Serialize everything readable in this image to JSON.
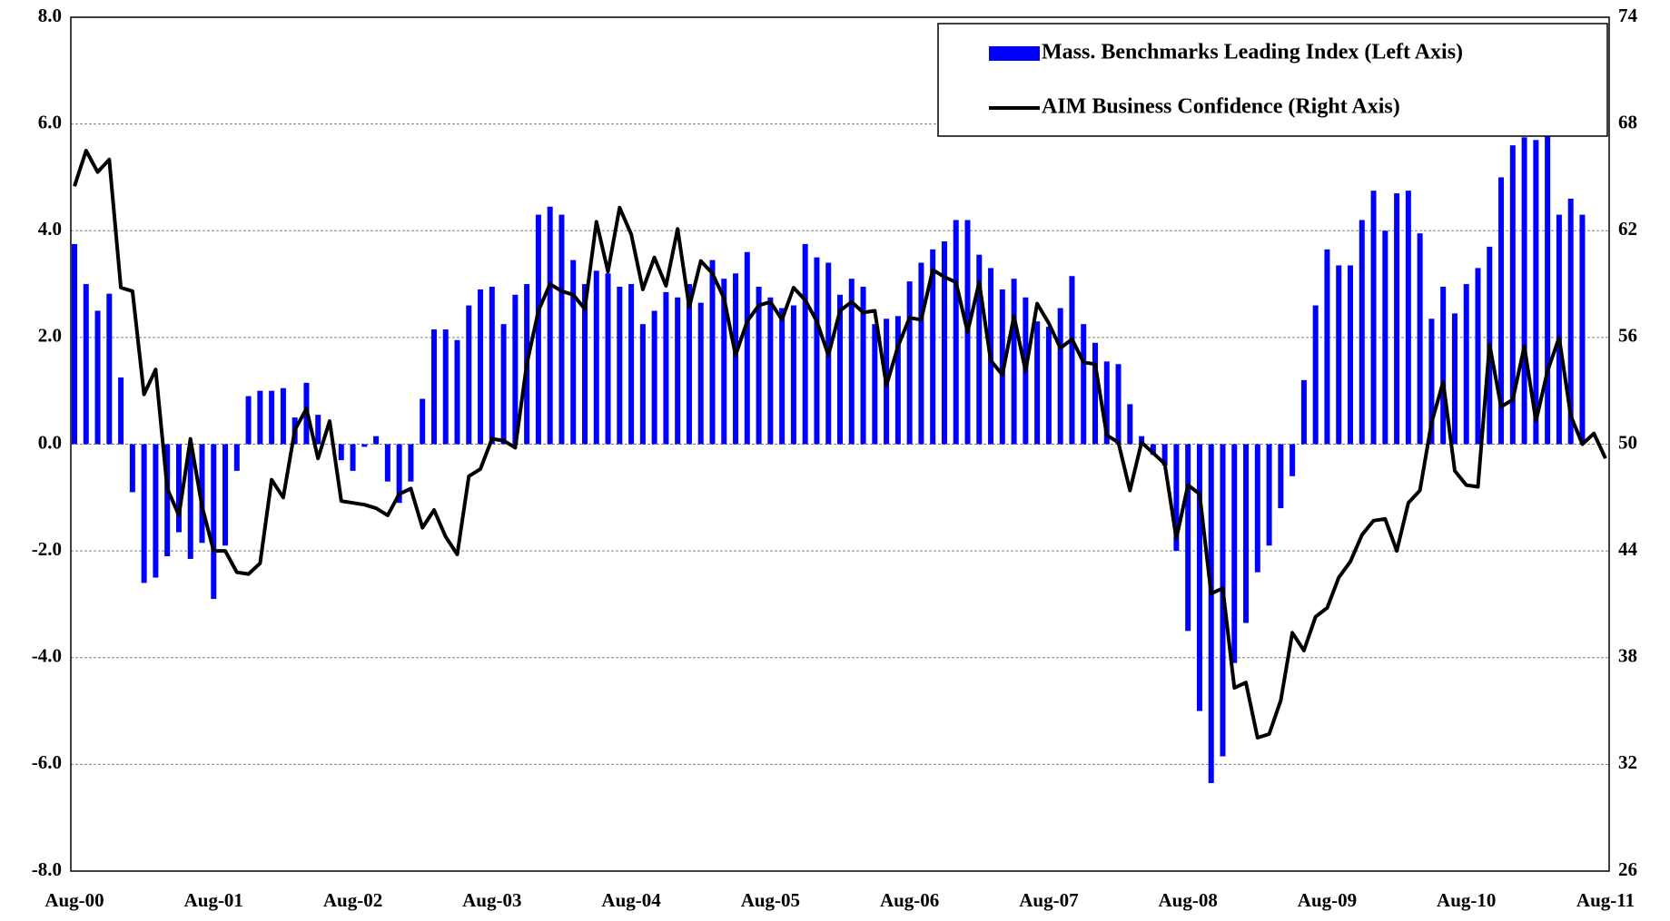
{
  "chart_data": {
    "type": "bar-line",
    "categories": [
      "Aug-00",
      null,
      null,
      null,
      null,
      null,
      null,
      null,
      null,
      null,
      null,
      null,
      "Aug-01",
      null,
      null,
      null,
      null,
      null,
      null,
      null,
      null,
      null,
      null,
      null,
      "Aug-02",
      null,
      null,
      null,
      null,
      null,
      null,
      null,
      null,
      null,
      null,
      null,
      "Aug-03",
      null,
      null,
      null,
      null,
      null,
      null,
      null,
      null,
      null,
      null,
      null,
      "Aug-04",
      null,
      null,
      null,
      null,
      null,
      null,
      null,
      null,
      null,
      null,
      null,
      "Aug-05",
      null,
      null,
      null,
      null,
      null,
      null,
      null,
      null,
      null,
      null,
      null,
      "Aug-06",
      null,
      null,
      null,
      null,
      null,
      null,
      null,
      null,
      null,
      null,
      null,
      "Aug-07",
      null,
      null,
      null,
      null,
      null,
      null,
      null,
      null,
      null,
      null,
      null,
      "Aug-08",
      null,
      null,
      null,
      null,
      null,
      null,
      null,
      null,
      null,
      null,
      null,
      "Aug-09",
      null,
      null,
      null,
      null,
      null,
      null,
      null,
      null,
      null,
      null,
      null,
      "Aug-10",
      null,
      null,
      null,
      null,
      null,
      null,
      null,
      null,
      null,
      null,
      null,
      "Aug-11"
    ],
    "series": [
      {
        "name": "Mass. Benchmarks Leading Index (Left Axis)",
        "type": "bar",
        "color": "#0000ff",
        "values": [
          3.75,
          3.0,
          2.5,
          2.82,
          1.25,
          -0.9,
          -2.6,
          -2.5,
          -2.1,
          -1.65,
          -2.15,
          -1.85,
          -2.9,
          -1.9,
          -0.5,
          0.9,
          1.0,
          1.0,
          1.05,
          0.5,
          1.15,
          0.55,
          0.0,
          -0.3,
          -0.5,
          -0.05,
          0.15,
          -0.7,
          -1.1,
          -0.7,
          0.85,
          2.15,
          2.15,
          1.95,
          2.6,
          2.9,
          2.95,
          2.25,
          2.8,
          3.0,
          4.3,
          4.45,
          4.3,
          3.45,
          3.0,
          3.25,
          3.2,
          2.95,
          3.0,
          2.25,
          2.5,
          2.85,
          2.75,
          3.0,
          2.65,
          3.45,
          3.1,
          3.2,
          3.6,
          2.95,
          2.75,
          2.55,
          2.6,
          3.75,
          3.5,
          3.4,
          2.8,
          3.1,
          2.95,
          2.25,
          2.35,
          2.4,
          3.05,
          3.4,
          3.65,
          3.8,
          4.2,
          4.2,
          3.55,
          3.3,
          2.9,
          3.1,
          2.75,
          2.3,
          2.2,
          2.55,
          3.15,
          2.25,
          1.9,
          1.55,
          1.5,
          0.75,
          0.15,
          -0.2,
          -0.4,
          -2.0,
          -3.5,
          -5.0,
          -6.35,
          -5.85,
          -4.1,
          -3.35,
          -2.4,
          -1.9,
          -1.2,
          -0.6,
          1.2,
          2.6,
          3.65,
          3.35,
          3.35,
          4.2,
          4.75,
          4.0,
          4.7,
          4.75,
          3.95,
          2.35,
          2.95,
          2.45,
          3.0,
          3.3,
          3.7,
          5.0,
          5.6,
          5.75,
          5.7,
          5.8,
          4.3,
          4.6,
          4.3,
          null,
          null
        ]
      },
      {
        "name": "AIM Business Confidence (Right Axis)",
        "type": "line",
        "axis": "y2",
        "color": "#000000",
        "values": [
          64.5,
          66.5,
          65.3,
          66,
          58.8,
          58.6,
          52.8,
          54.2,
          47.5,
          46,
          50.3,
          46.5,
          44,
          44,
          42.8,
          42.7,
          43.3,
          48,
          47,
          50.8,
          52,
          49.2,
          51.3,
          46.8,
          46.7,
          46.6,
          46.4,
          46,
          47.2,
          47.5,
          45.3,
          46.3,
          44.8,
          43.8,
          48.2,
          48.6,
          50.3,
          50.2,
          49.8,
          54.5,
          57.5,
          59,
          58.6,
          58.4,
          57.6,
          62.5,
          59.7,
          63.3,
          61.8,
          58.7,
          60.5,
          58.9,
          62.1,
          57.7,
          60.3,
          59.6,
          58.2,
          55,
          56.9,
          57.8,
          58,
          57,
          58.8,
          58.1,
          56.9,
          55,
          57.5,
          58,
          57.4,
          57.5,
          53.3,
          55.5,
          57.1,
          57,
          59.8,
          59.4,
          59.1,
          56.3,
          59.1,
          54.7,
          53.9,
          57.2,
          54.1,
          57.9,
          56.8,
          55.4,
          55.9,
          54.6,
          54.5,
          50.5,
          50.1,
          47.4,
          50.1,
          49.5,
          48.9,
          44.7,
          47.7,
          47.2,
          41.6,
          41.9,
          36.3,
          36.6,
          33.5,
          33.7,
          35.6,
          39.4,
          38.4,
          40.3,
          40.8,
          42.5,
          43.4,
          44.9,
          45.7,
          45.8,
          44,
          46.7,
          47.4,
          51.2,
          53.5,
          48.5,
          47.7,
          47.6,
          55.6,
          52.1,
          52.5,
          55.5,
          51.3,
          54.1,
          56,
          51.6,
          50,
          50.6,
          49.2
        ]
      }
    ],
    "ylim": [
      -8,
      8
    ],
    "yticks": [
      {
        "value": -8,
        "label": "-8.0"
      },
      {
        "value": -6,
        "label": "-6.0"
      },
      {
        "value": -4,
        "label": "-4.0"
      },
      {
        "value": -2,
        "label": "-2.0"
      },
      {
        "value": 0,
        "label": "0.0"
      },
      {
        "value": 2,
        "label": "2.0"
      },
      {
        "value": 4,
        "label": "4.0"
      },
      {
        "value": 6,
        "label": "6.0"
      },
      {
        "value": 8,
        "label": "8.0"
      }
    ],
    "y2lim": [
      26,
      74
    ],
    "y2ticks": [
      26,
      32,
      38,
      44,
      50,
      56,
      62,
      68,
      74
    ],
    "grid": true,
    "legend": "upper right"
  }
}
